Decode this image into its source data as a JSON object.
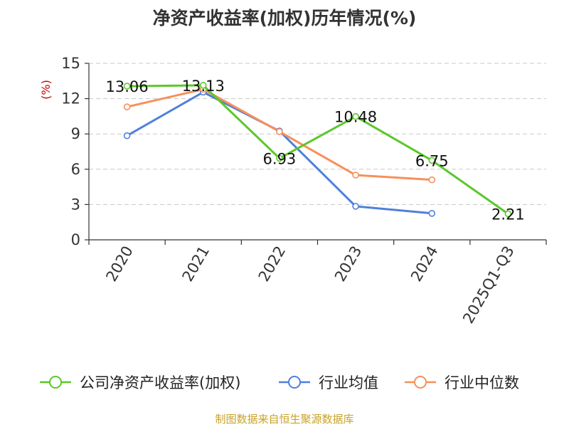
{
  "chart_data": {
    "type": "line",
    "title": "净资产收益率(加权)历年情况(%)",
    "ylabel": "(%)",
    "xlabel": "",
    "categories": [
      "2020",
      "2021",
      "2022",
      "2023",
      "2024",
      "2025Q1-Q3"
    ],
    "ylim": [
      0,
      15
    ],
    "yticks": [
      0,
      3,
      6,
      9,
      12,
      15
    ],
    "grid": true,
    "legend_position": "bottom",
    "series": [
      {
        "name": "公司净资产收益率(加权)",
        "color": "#5ac82a",
        "values": [
          13.06,
          13.13,
          6.93,
          10.48,
          6.75,
          2.21
        ],
        "labels": [
          "13.06",
          "13.13",
          "6.93",
          "10.48",
          "6.75",
          "2.21"
        ]
      },
      {
        "name": "行业均值",
        "color": "#4f80db",
        "values": [
          8.85,
          12.55,
          9.25,
          2.85,
          2.25,
          null
        ]
      },
      {
        "name": "行业中位数",
        "color": "#f7905a",
        "values": [
          11.3,
          12.8,
          9.2,
          5.5,
          5.1,
          null
        ]
      }
    ]
  },
  "footer": {
    "source": "制图数据来自恒生聚源数据库"
  }
}
